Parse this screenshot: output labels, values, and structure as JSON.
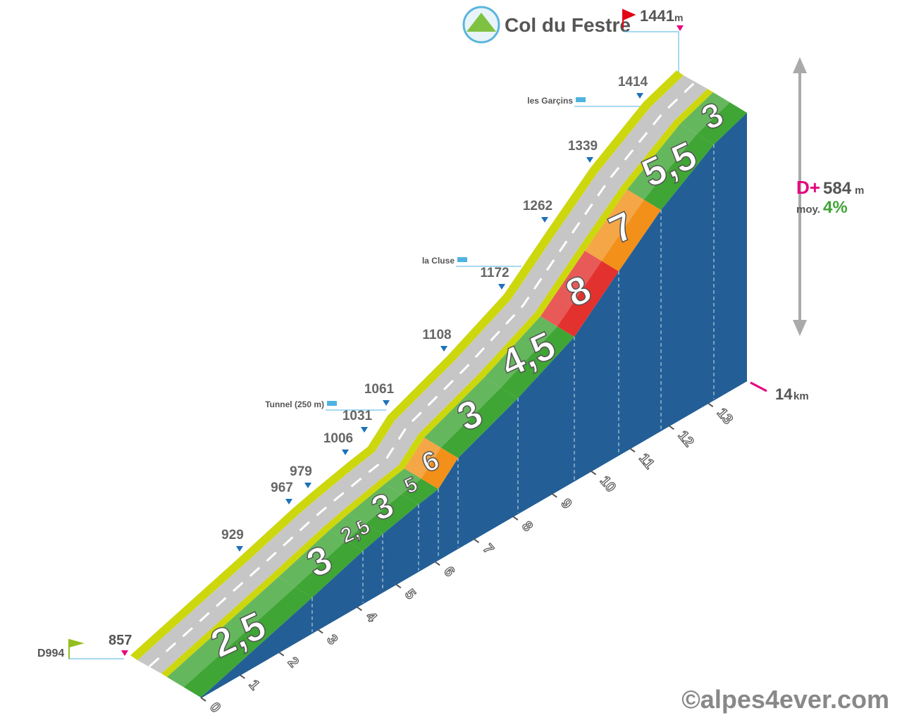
{
  "title": "Col du Festre",
  "summit": {
    "elevation": "1441",
    "unit": "m"
  },
  "start": {
    "road": "D994",
    "elevation": "857"
  },
  "elevations": [
    "929",
    "967",
    "979",
    "1006",
    "1031",
    "1061",
    "1108",
    "1172",
    "1262",
    "1339",
    "1414"
  ],
  "places": [
    "Tunnel (250 m)",
    "la Cluse",
    "les Garçins"
  ],
  "gradients": [
    "2,5",
    "3",
    "2,5",
    "3",
    "5",
    "6",
    "3",
    "4,5",
    "8",
    "7",
    "5,5",
    "3"
  ],
  "km_ticks": [
    "0",
    "1",
    "2",
    "3",
    "4",
    "5",
    "6",
    "7",
    "8",
    "9",
    "10",
    "11",
    "12",
    "13"
  ],
  "distance": {
    "value": "14",
    "unit": "km"
  },
  "gain": {
    "label": "D+",
    "value": "584",
    "unit": "m"
  },
  "average": {
    "label": "moy.",
    "value": "4%"
  },
  "credit": "©alpes4ever.com"
}
